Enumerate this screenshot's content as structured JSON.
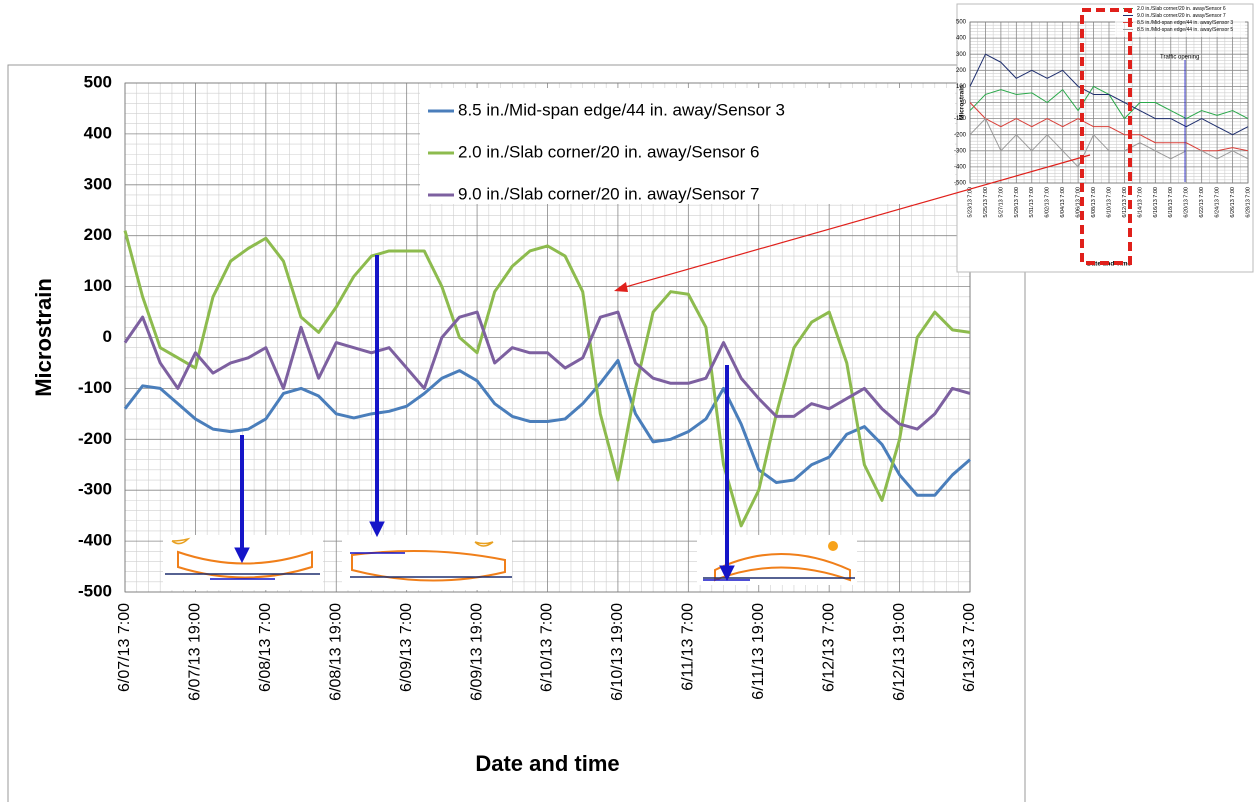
{
  "chart_data": [
    {
      "type": "line",
      "ylabel": "Microstrain",
      "xlabel": "Date and time",
      "x": [
        "6/07/13 7:00",
        "6/07/13 10:00",
        "6/07/13 13:00",
        "6/07/13 16:00",
        "6/07/13 19:00",
        "6/07/13 22:00",
        "6/08/13 1:00",
        "6/08/13 4:00",
        "6/08/13 7:00",
        "6/08/13 10:00",
        "6/08/13 13:00",
        "6/08/13 16:00",
        "6/08/13 19:00",
        "6/08/13 22:00",
        "6/09/13 1:00",
        "6/09/13 4:00",
        "6/09/13 7:00",
        "6/09/13 10:00",
        "6/09/13 13:00",
        "6/09/13 16:00",
        "6/09/13 19:00",
        "6/09/13 22:00",
        "6/10/13 1:00",
        "6/10/13 4:00",
        "6/10/13 7:00",
        "6/10/13 10:00",
        "6/10/13 13:00",
        "6/10/13 16:00",
        "6/10/13 19:00",
        "6/10/13 22:00",
        "6/11/13 1:00",
        "6/11/13 4:00",
        "6/11/13 7:00",
        "6/11/13 10:00",
        "6/11/13 13:00",
        "6/11/13 16:00",
        "6/11/13 19:00",
        "6/11/13 22:00",
        "6/12/13 1:00",
        "6/12/13 4:00",
        "6/12/13 7:00",
        "6/12/13 10:00",
        "6/12/13 13:00",
        "6/12/13 16:00",
        "6/12/13 19:00",
        "6/12/13 22:00",
        "6/13/13 1:00",
        "6/13/13 4:00",
        "6/13/13 7:00"
      ],
      "series": [
        {
          "name": "8.5 in./Mid-span edge/44 in. away/Sensor 3",
          "color": "#4a7ebb",
          "values": [
            -140,
            -95,
            -100,
            -130,
            -160,
            -180,
            -185,
            -180,
            -160,
            -110,
            -100,
            -115,
            -150,
            -158,
            -150,
            -145,
            -135,
            -110,
            -80,
            -65,
            -85,
            -130,
            -155,
            -165,
            -165,
            -160,
            -130,
            -90,
            -45,
            -150,
            -205,
            -200,
            -185,
            -160,
            -100,
            -170,
            -260,
            -285,
            -280,
            -250,
            -235,
            -190,
            -175,
            -210,
            -270,
            -310,
            -310,
            -270,
            -240
          ]
        },
        {
          "name": "2.0 in./Slab corner/20 in. away/Sensor 6",
          "color": "#8dbb4e",
          "values": [
            210,
            80,
            -20,
            -40,
            -60,
            80,
            150,
            175,
            195,
            150,
            40,
            10,
            60,
            120,
            160,
            170,
            170,
            170,
            100,
            0,
            -30,
            90,
            140,
            170,
            180,
            160,
            90,
            -150,
            -280,
            -100,
            50,
            90,
            85,
            20,
            -250,
            -370,
            -300,
            -150,
            -20,
            30,
            50,
            -50,
            -250,
            -320,
            -200,
            0,
            50,
            15,
            10
          ]
        },
        {
          "name": "9.0 in./Slab corner/20 in. away/Sensor 7",
          "color": "#7d60a0",
          "values": [
            -10,
            40,
            -50,
            -100,
            -30,
            -70,
            -50,
            -40,
            -20,
            -100,
            20,
            -80,
            -10,
            -20,
            -30,
            -20,
            -60,
            -100,
            0,
            40,
            50,
            -50,
            -20,
            -30,
            -30,
            -60,
            -40,
            40,
            50,
            -50,
            -80,
            -90,
            -90,
            -80,
            -10,
            -80,
            -120,
            -155,
            -155,
            -130,
            -140,
            -120,
            -100,
            -140,
            -170,
            -180,
            -150,
            -100,
            -110
          ]
        }
      ],
      "xlim": [
        "6/07/13 7:00",
        "6/13/13 7:00"
      ],
      "xticks": [
        "6/07/13 7:00",
        "6/07/13 19:00",
        "6/08/13 7:00",
        "6/08/13 19:00",
        "6/09/13 7:00",
        "6/09/13 19:00",
        "6/10/13 7:00",
        "6/10/13 19:00",
        "6/11/13 7:00",
        "6/11/13 19:00",
        "6/12/13 7:00",
        "6/12/13 19:00",
        "6/13/13 7:00"
      ],
      "ylim": [
        -500,
        500
      ],
      "yticks": [
        -500,
        -400,
        -300,
        -200,
        -100,
        0,
        100,
        200,
        300,
        400,
        500
      ],
      "grid": true,
      "minor_grid": true,
      "legend": "upper right"
    },
    {
      "type": "line",
      "ylabel": "Microstrain",
      "xlabel": "Date and Time",
      "annotation": "Traffic opening",
      "x": [
        "5/23/13 7:00",
        "5/25/13 7:00",
        "5/27/13 7:00",
        "5/29/13 7:00",
        "5/31/13 7:00",
        "6/02/13 7:00",
        "6/04/13 7:00",
        "6/06/13 7:00",
        "6/08/13 7:00",
        "6/10/13 7:00",
        "6/12/13 7:00",
        "6/14/13 7:00",
        "6/16/13 7:00",
        "6/18/13 7:00",
        "6/20/13 7:00",
        "6/22/13 7:00",
        "6/24/13 7:00",
        "6/26/13 7:00",
        "6/28/13 7:00"
      ],
      "series": [
        {
          "name": "2.0 in./Slab corner/20 in. away/Sensor 6",
          "color": "#2aa84a",
          "values": [
            -50,
            50,
            80,
            50,
            60,
            0,
            80,
            -50,
            100,
            50,
            -100,
            0,
            0,
            -50,
            -100,
            -50,
            -80,
            -50,
            -100
          ]
        },
        {
          "name": "9.0 in./Slab corner/20 in. away/Sensor 7",
          "color": "#1f2f6e",
          "values": [
            100,
            300,
            250,
            150,
            200,
            150,
            200,
            100,
            50,
            50,
            0,
            -50,
            -100,
            -100,
            -150,
            -100,
            -150,
            -200,
            -150
          ]
        },
        {
          "name": "8.5 in./Mid-span edge/44 in. away/Sensor 3",
          "color": "#d9403a",
          "values": [
            0,
            -100,
            -150,
            -100,
            -150,
            -100,
            -150,
            -100,
            -150,
            -150,
            -200,
            -200,
            -250,
            -250,
            -250,
            -300,
            -300,
            -280,
            -300
          ]
        },
        {
          "name": "8.5 in./Mid-span edge/44 in. away/Sensor 5",
          "color": "#9a9a9a",
          "values": [
            -200,
            -100,
            -300,
            -200,
            -300,
            -200,
            -300,
            -400,
            -200,
            -300,
            -300,
            -250,
            -300,
            -350,
            -300,
            -300,
            -350,
            -300,
            -350
          ]
        }
      ],
      "xlim": [
        "5/23/13 7:00",
        "6/28/13 7:00"
      ],
      "xticks": [
        "5/23/13 7:00",
        "5/25/13 7:00",
        "5/27/13 7:00",
        "5/29/13 7:00",
        "5/31/13 7:00",
        "6/02/13 7:00",
        "6/04/13 7:00",
        "6/06/13 7:00",
        "6/08/13 7:00",
        "6/10/13 7:00",
        "6/12/13 7:00",
        "6/14/13 7:00",
        "6/16/13 7:00",
        "6/18/13 7:00",
        "6/20/13 7:00",
        "6/22/13 7:00",
        "6/24/13 7:00",
        "6/26/13 7:00",
        "6/28/13 7:00"
      ],
      "ylim": [
        -500,
        500
      ],
      "yticks": [
        -500,
        -400,
        -300,
        -200,
        -100,
        0,
        100,
        200,
        300,
        400,
        500
      ],
      "grid": true,
      "minor_grid": true,
      "legend": "upper right"
    }
  ]
}
